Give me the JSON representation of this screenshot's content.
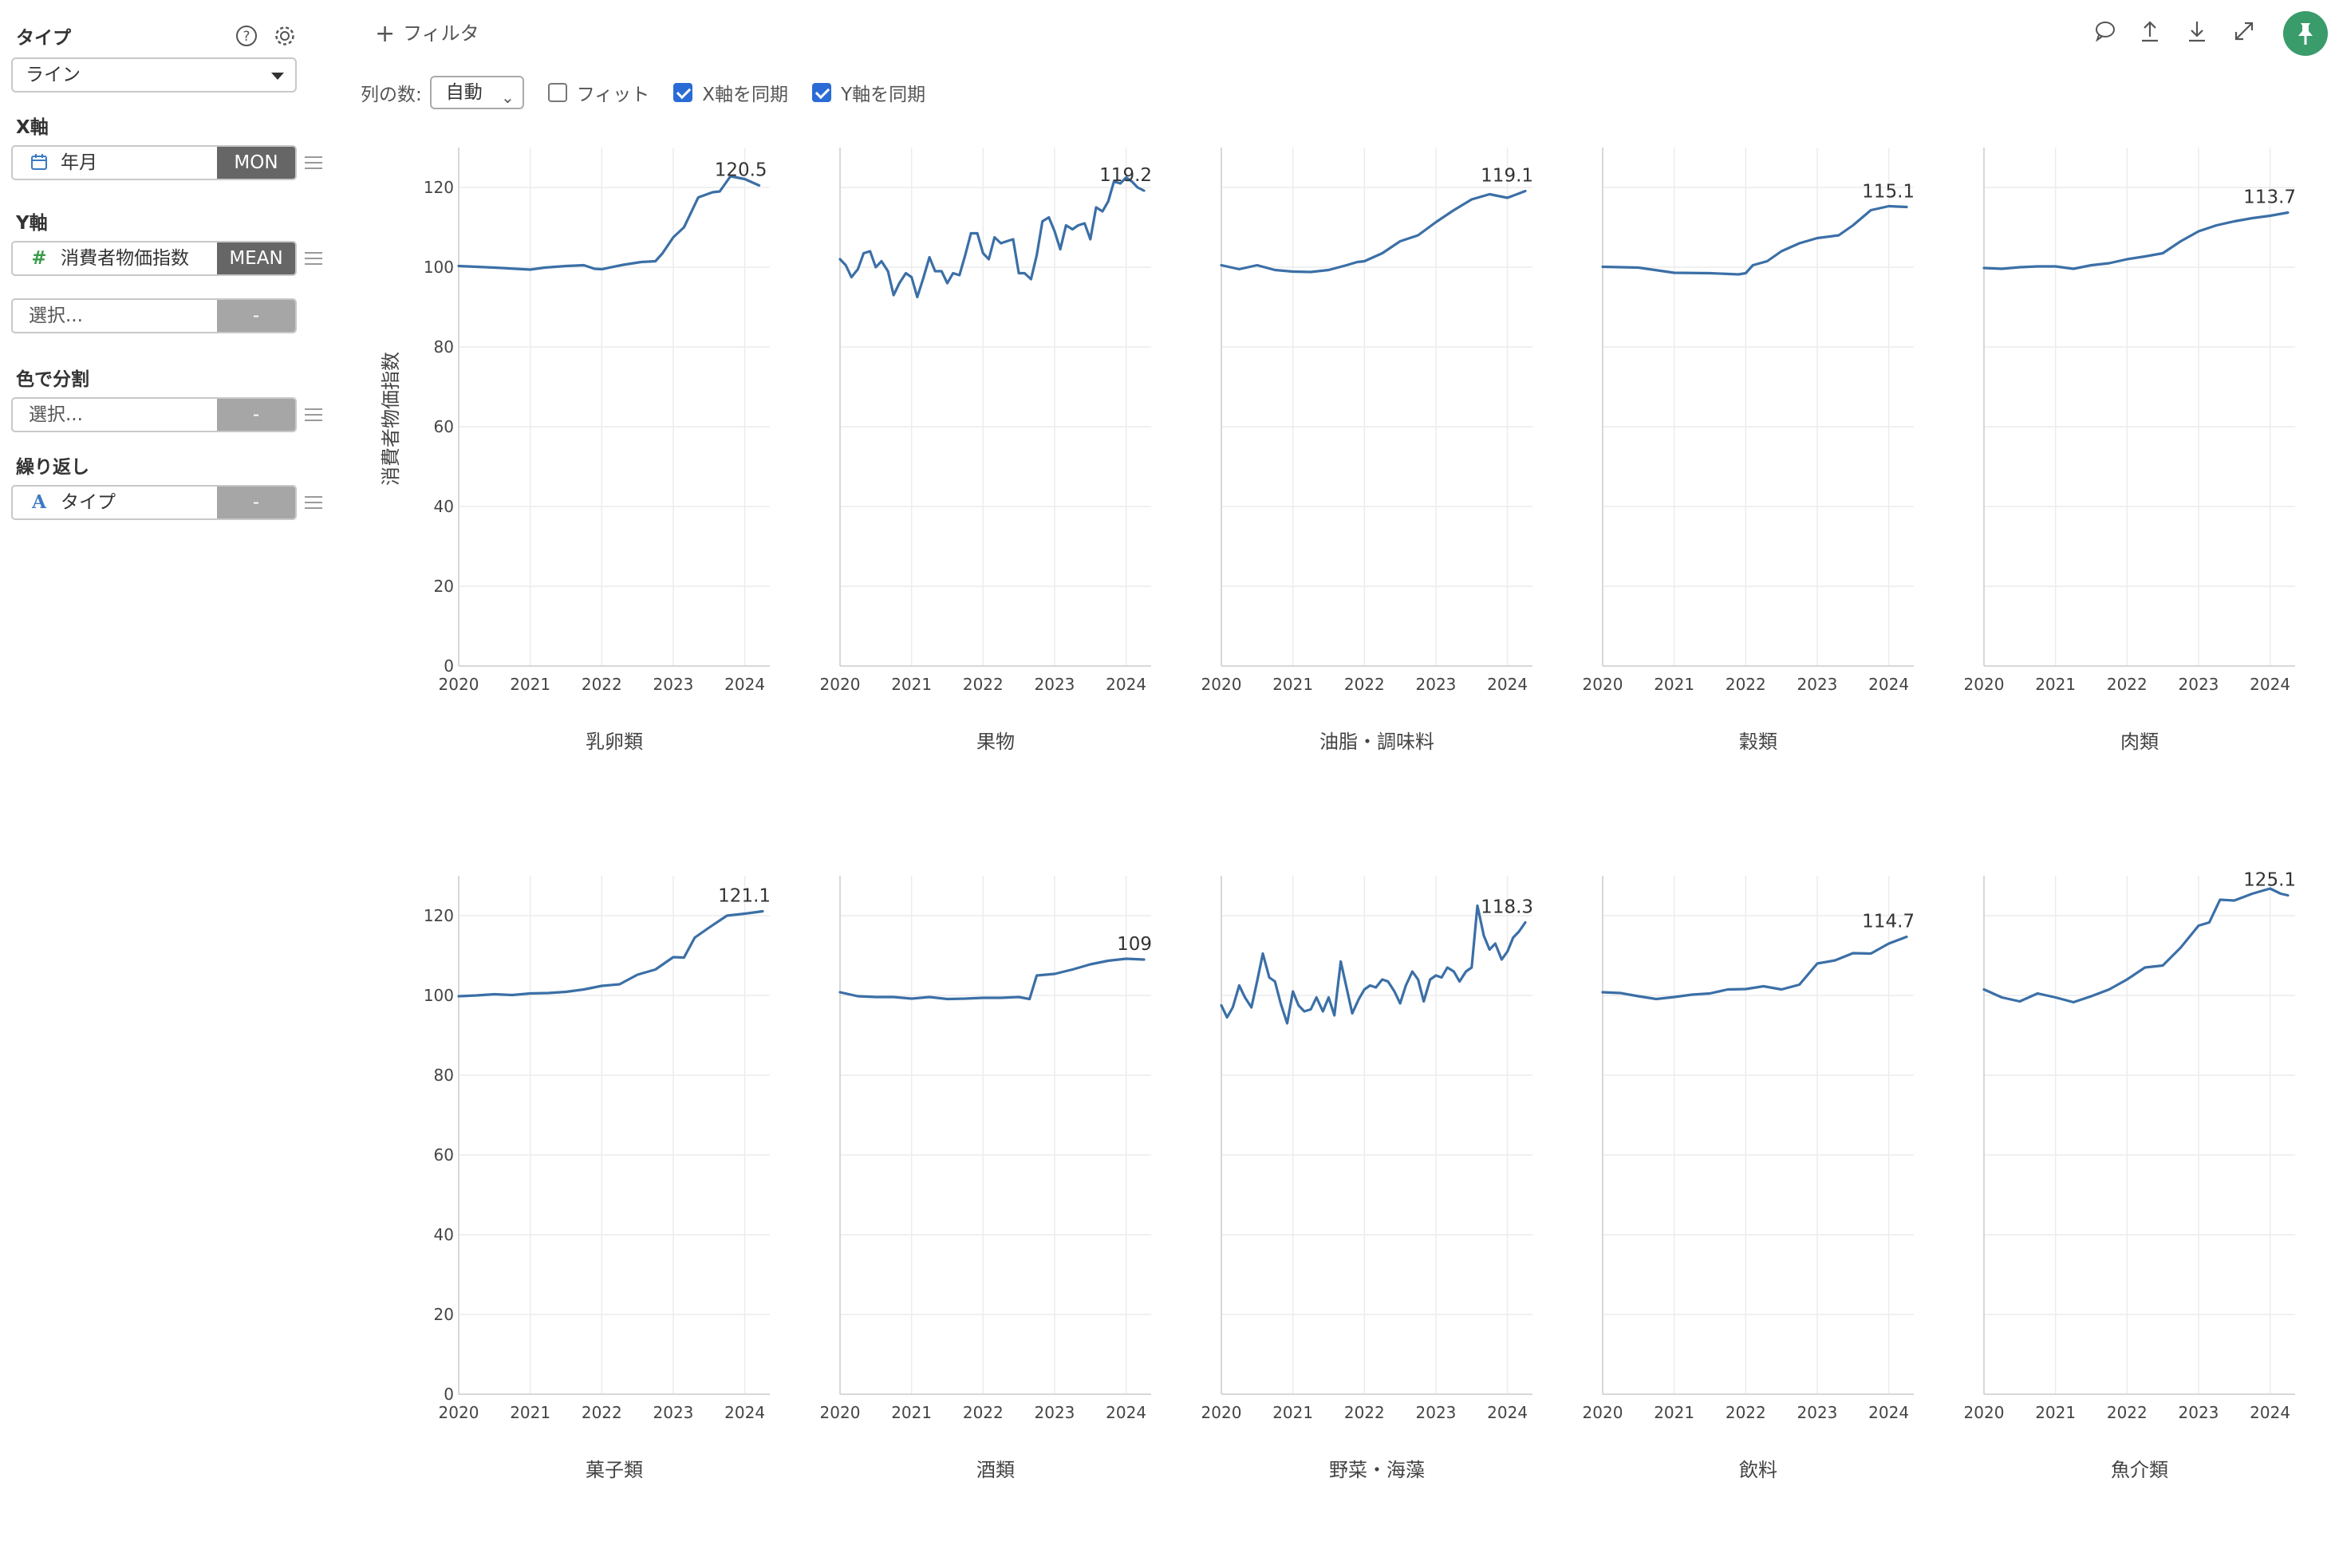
{
  "sidebar": {
    "type_label": "タイプ",
    "type_value": "ライン",
    "xaxis_label": "X軸",
    "xaxis_field": "年月",
    "xaxis_agg": "MON",
    "yaxis_label": "Y軸",
    "yaxis_field": "消費者物価指数",
    "yaxis_agg": "MEAN",
    "yaxis_extra": "選択...",
    "yaxis_extra_agg": "-",
    "color_label": "色で分割",
    "color_field": "選択...",
    "color_agg": "-",
    "repeat_label": "繰り返し",
    "repeat_field": "タイプ",
    "repeat_agg": "-",
    "icons": {
      "help": "help-icon",
      "settings": "gear-icon",
      "calendar": "calendar-icon",
      "number": "hash-icon",
      "text": "text-a-icon"
    }
  },
  "toolbar": {
    "filter_label": "フィルタ",
    "columns_label": "列の数:",
    "columns_value": "自動",
    "fit_label": "フィット",
    "fit_checked": false,
    "sync_x_label": "X軸を同期",
    "sync_x_checked": true,
    "sync_y_label": "Y軸を同期",
    "sync_y_checked": true,
    "icons": [
      "comment-icon",
      "upload-icon",
      "download-icon",
      "expand-icon",
      "pin-icon"
    ],
    "accent_color": "#3a9b6b",
    "checkbox_color": "#2a6bd6"
  },
  "chart_data": {
    "type": "line",
    "ylabel": "消費者物価指数",
    "ylim": [
      0,
      130
    ],
    "yticks": [
      0,
      20,
      40,
      60,
      80,
      100,
      120
    ],
    "xlim": [
      2020,
      2024.35
    ],
    "xticks": [
      "2020",
      "2021",
      "2022",
      "2023",
      "2024"
    ],
    "line_color": "#3b6fa6",
    "grid": true,
    "panels": [
      {
        "name": "乳卵類",
        "end_label": "120.5",
        "x": [
          2020.0,
          2020.5,
          2021.0,
          2021.2,
          2021.5,
          2021.75,
          2021.9,
          2022.0,
          2022.3,
          2022.55,
          2022.75,
          2022.85,
          2023.0,
          2023.15,
          2023.35,
          2023.55,
          2023.65,
          2023.8,
          2024.0,
          2024.2
        ],
        "y": [
          100.3,
          99.9,
          99.4,
          99.9,
          100.3,
          100.5,
          99.6,
          99.5,
          100.6,
          101.3,
          101.5,
          103.5,
          107.5,
          110,
          117.5,
          118.8,
          119,
          122.8,
          122.1,
          120.5
        ]
      },
      {
        "name": "果物",
        "end_label": "119.2",
        "x": [
          2020.0,
          2020.08,
          2020.16,
          2020.25,
          2020.33,
          2020.42,
          2020.5,
          2020.58,
          2020.67,
          2020.75,
          2020.83,
          2020.92,
          2021.0,
          2021.08,
          2021.16,
          2021.25,
          2021.33,
          2021.42,
          2021.5,
          2021.58,
          2021.67,
          2021.75,
          2021.83,
          2021.92,
          2022.0,
          2022.08,
          2022.16,
          2022.25,
          2022.33,
          2022.42,
          2022.5,
          2022.58,
          2022.67,
          2022.75,
          2022.83,
          2022.92,
          2023.0,
          2023.08,
          2023.16,
          2023.25,
          2023.33,
          2023.42,
          2023.5,
          2023.58,
          2023.67,
          2023.75,
          2023.83,
          2023.92,
          2024.0,
          2024.08,
          2024.16,
          2024.25
        ],
        "y": [
          102,
          100.5,
          97.5,
          99.5,
          103.5,
          104,
          100,
          101.5,
          99,
          93,
          96,
          98.5,
          97.5,
          92.5,
          97,
          102.5,
          99,
          99,
          96,
          98.5,
          98,
          103,
          108.5,
          108.5,
          103.5,
          102,
          107.5,
          106,
          106.5,
          107,
          98.5,
          98.5,
          97,
          103,
          111.5,
          112.5,
          109,
          104.5,
          110.5,
          109.5,
          110.5,
          111,
          107,
          115,
          114,
          116.5,
          121.5,
          121,
          122.5,
          121.5,
          120,
          119.2
        ]
      },
      {
        "name": "油脂・調味料",
        "end_label": "119.1",
        "x": [
          2020.0,
          2020.25,
          2020.5,
          2020.75,
          2021.0,
          2021.25,
          2021.5,
          2021.75,
          2021.9,
          2022.0,
          2022.25,
          2022.5,
          2022.75,
          2023.0,
          2023.25,
          2023.5,
          2023.75,
          2024.0,
          2024.25
        ],
        "y": [
          100.5,
          99.5,
          100.5,
          99.3,
          98.9,
          98.8,
          99.3,
          100.5,
          101.3,
          101.5,
          103.5,
          106.5,
          108,
          111.3,
          114.3,
          117,
          118.3,
          117.4,
          119.1
        ]
      },
      {
        "name": "穀類",
        "end_label": "115.1",
        "x": [
          2020.0,
          2020.5,
          2021.0,
          2021.5,
          2021.9,
          2022.0,
          2022.1,
          2022.3,
          2022.5,
          2022.75,
          2023.0,
          2023.3,
          2023.5,
          2023.75,
          2024.0,
          2024.25
        ],
        "y": [
          100.1,
          99.9,
          98.6,
          98.5,
          98.2,
          98.5,
          100.5,
          101.5,
          104,
          106,
          107.3,
          108,
          110.5,
          114.3,
          115.3,
          115.1
        ]
      },
      {
        "name": "肉類",
        "end_label": "113.7",
        "x": [
          2020.0,
          2020.25,
          2020.5,
          2020.75,
          2021.0,
          2021.25,
          2021.5,
          2021.75,
          2022.0,
          2022.25,
          2022.5,
          2022.75,
          2023.0,
          2023.25,
          2023.5,
          2023.75,
          2024.0,
          2024.25
        ],
        "y": [
          99.8,
          99.6,
          100,
          100.2,
          100.2,
          99.6,
          100.5,
          101,
          102,
          102.7,
          103.5,
          106.5,
          109,
          110.5,
          111.5,
          112.3,
          112.9,
          113.7
        ]
      },
      {
        "name": "菓子類",
        "end_label": "121.1",
        "x": [
          2020.0,
          2020.25,
          2020.5,
          2020.75,
          2021.0,
          2021.25,
          2021.5,
          2021.75,
          2022.0,
          2022.25,
          2022.5,
          2022.75,
          2023.0,
          2023.15,
          2023.3,
          2023.5,
          2023.75,
          2024.0,
          2024.25
        ],
        "y": [
          99.8,
          100,
          100.3,
          100.1,
          100.5,
          100.6,
          100.9,
          101.5,
          102.4,
          102.8,
          105.2,
          106.5,
          109.6,
          109.5,
          114.5,
          117,
          120,
          120.5,
          121.1
        ]
      },
      {
        "name": "酒類",
        "end_label": "109",
        "x": [
          2020.0,
          2020.25,
          2020.5,
          2020.75,
          2021.0,
          2021.25,
          2021.5,
          2021.75,
          2022.0,
          2022.25,
          2022.5,
          2022.65,
          2022.75,
          2023.0,
          2023.25,
          2023.5,
          2023.75,
          2024.0,
          2024.25
        ],
        "y": [
          100.8,
          99.8,
          99.6,
          99.6,
          99.2,
          99.6,
          99.1,
          99.2,
          99.4,
          99.4,
          99.6,
          99.1,
          105,
          105.4,
          106.5,
          107.8,
          108.7,
          109.2,
          109
        ]
      },
      {
        "name": "野菜・海藻",
        "end_label": "118.3",
        "x": [
          2020.0,
          2020.08,
          2020.16,
          2020.25,
          2020.33,
          2020.42,
          2020.5,
          2020.58,
          2020.67,
          2020.75,
          2020.83,
          2020.92,
          2021.0,
          2021.08,
          2021.16,
          2021.25,
          2021.33,
          2021.42,
          2021.5,
          2021.58,
          2021.67,
          2021.75,
          2021.83,
          2021.92,
          2022.0,
          2022.08,
          2022.16,
          2022.25,
          2022.33,
          2022.42,
          2022.5,
          2022.58,
          2022.67,
          2022.75,
          2022.83,
          2022.92,
          2023.0,
          2023.08,
          2023.16,
          2023.25,
          2023.33,
          2023.42,
          2023.5,
          2023.58,
          2023.67,
          2023.75,
          2023.83,
          2023.92,
          2024.0,
          2024.08,
          2024.16,
          2024.25
        ],
        "y": [
          97.5,
          94.5,
          97,
          102.5,
          99.5,
          97,
          103.5,
          110.5,
          104.5,
          103.5,
          98,
          93,
          101,
          97.5,
          96,
          96.5,
          99.5,
          96,
          99.5,
          95,
          108.5,
          102,
          95.5,
          99,
          101.5,
          102.5,
          102,
          104,
          103.5,
          101,
          98,
          102.5,
          106,
          104,
          98.5,
          104,
          105,
          104.5,
          107,
          106,
          103.5,
          106,
          107,
          122.5,
          115,
          111.5,
          113,
          109,
          111,
          114.5,
          116,
          118.3
        ]
      },
      {
        "name": "飲料",
        "end_label": "114.7",
        "x": [
          2020.0,
          2020.25,
          2020.5,
          2020.75,
          2021.0,
          2021.25,
          2021.5,
          2021.75,
          2022.0,
          2022.25,
          2022.5,
          2022.75,
          2023.0,
          2023.25,
          2023.5,
          2023.75,
          2024.0,
          2024.25
        ],
        "y": [
          100.8,
          100.6,
          99.8,
          99.1,
          99.6,
          100.2,
          100.5,
          101.5,
          101.6,
          102.3,
          101.5,
          102.7,
          108,
          108.8,
          110.6,
          110.5,
          113,
          114.7
        ]
      },
      {
        "name": "魚介類",
        "end_label": "125.1",
        "x": [
          2020.0,
          2020.25,
          2020.5,
          2020.75,
          2021.0,
          2021.25,
          2021.5,
          2021.75,
          2022.0,
          2022.25,
          2022.5,
          2022.75,
          2023.0,
          2023.15,
          2023.3,
          2023.5,
          2023.75,
          2024.0,
          2024.15,
          2024.25
        ],
        "y": [
          101.5,
          99.5,
          98.5,
          100.5,
          99.5,
          98.3,
          99.8,
          101.5,
          104,
          107,
          107.5,
          112,
          117.5,
          118.3,
          124,
          123.8,
          125.5,
          126.8,
          125.5,
          125.1
        ]
      }
    ]
  }
}
